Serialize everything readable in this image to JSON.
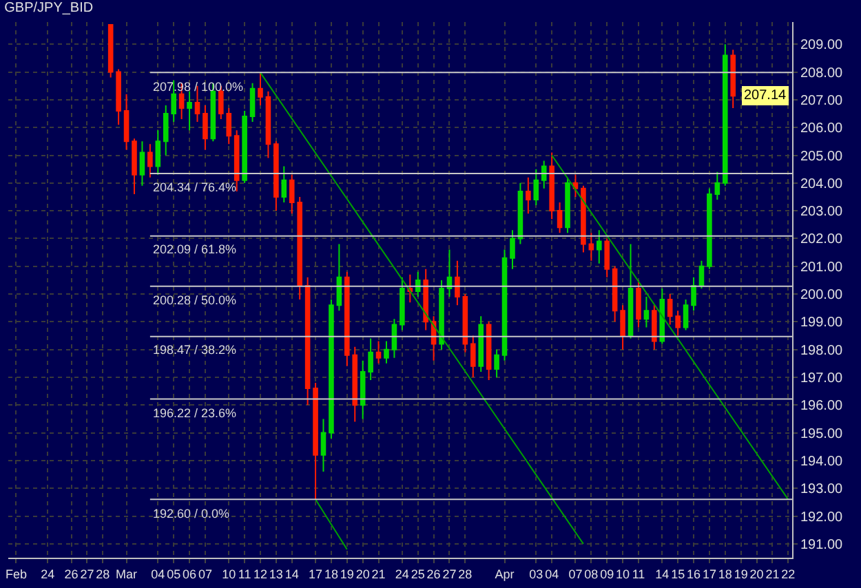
{
  "chart_data": {
    "type": "candlestick",
    "title": "GBP/JPY_BID",
    "categories": [
      "Feb",
      null,
      null,
      null,
      "24",
      null,
      null,
      "26",
      null,
      "27",
      null,
      "28",
      null,
      null,
      "Mar",
      null,
      null,
      null,
      "04",
      null,
      "05",
      null,
      "06",
      null,
      "07",
      null,
      null,
      "10",
      null,
      "11",
      null,
      "12",
      null,
      "13",
      null,
      "14",
      null,
      null,
      "17",
      null,
      "18",
      null,
      "19",
      null,
      "20",
      null,
      "21",
      null,
      null,
      "24",
      null,
      "25",
      null,
      "26",
      null,
      "27",
      null,
      "28",
      null,
      null,
      null,
      null,
      "Apr",
      null,
      null,
      null,
      "03",
      null,
      "04",
      null,
      null,
      "07",
      null,
      "08",
      null,
      "09",
      null,
      "10",
      null,
      "11",
      null,
      null,
      "14",
      null,
      "15",
      null,
      "16",
      null,
      "17",
      null,
      "18",
      null,
      "19",
      null,
      "20",
      null,
      "21",
      null,
      "22"
    ],
    "ohlc": [
      null,
      null,
      null,
      null,
      null,
      null,
      null,
      null,
      null,
      null,
      null,
      null,
      [
        209.7,
        209.7,
        207.8,
        208.0
      ],
      [
        208.0,
        208.1,
        206.1,
        206.6
      ],
      [
        206.6,
        207.2,
        205.2,
        205.5
      ],
      [
        205.5,
        205.6,
        203.6,
        204.3
      ],
      [
        204.3,
        205.5,
        203.9,
        205.1
      ],
      [
        205.1,
        205.4,
        204.2,
        204.6
      ],
      [
        204.6,
        205.9,
        204.3,
        205.5
      ],
      [
        205.5,
        206.8,
        205.0,
        206.5
      ],
      [
        206.5,
        207.7,
        206.2,
        207.2
      ],
      [
        207.2,
        207.6,
        206.3,
        206.7
      ],
      [
        206.7,
        207.3,
        205.9,
        206.9
      ],
      [
        206.9,
        207.5,
        206.2,
        206.5
      ],
      [
        206.5,
        206.8,
        205.2,
        205.6
      ],
      [
        205.6,
        207.6,
        205.5,
        207.3
      ],
      [
        207.3,
        207.5,
        206.3,
        206.5
      ],
      [
        206.5,
        206.7,
        205.4,
        205.7
      ],
      [
        205.7,
        205.9,
        203.7,
        204.1
      ],
      [
        204.1,
        206.6,
        204.0,
        206.4
      ],
      [
        206.4,
        207.6,
        206.2,
        207.4
      ],
      [
        207.4,
        207.98,
        206.8,
        207.1
      ],
      [
        207.1,
        207.3,
        204.9,
        205.4
      ],
      [
        205.4,
        205.5,
        203.0,
        203.5
      ],
      [
        203.5,
        204.6,
        203.3,
        204.1
      ],
      [
        204.1,
        204.3,
        202.9,
        203.3
      ],
      [
        203.3,
        203.5,
        199.8,
        200.3
      ],
      [
        200.3,
        200.6,
        196.0,
        196.6
      ],
      [
        196.6,
        196.8,
        192.6,
        194.2
      ],
      [
        194.2,
        195.5,
        193.6,
        195.0
      ],
      [
        195.0,
        199.8,
        194.8,
        199.6
      ],
      [
        199.6,
        201.8,
        199.4,
        200.6
      ],
      [
        200.6,
        200.8,
        197.4,
        197.8
      ],
      [
        197.8,
        198.1,
        195.4,
        196.0
      ],
      [
        196.0,
        197.6,
        195.5,
        197.2
      ],
      [
        197.2,
        198.4,
        196.9,
        197.9
      ],
      [
        197.9,
        198.3,
        197.5,
        197.7
      ],
      [
        197.7,
        198.3,
        197.5,
        198.0
      ],
      [
        198.0,
        199.1,
        197.7,
        198.9
      ],
      [
        198.9,
        200.6,
        198.7,
        200.2
      ],
      [
        200.2,
        200.7,
        199.7,
        200.1
      ],
      [
        200.1,
        200.8,
        199.9,
        200.5
      ],
      [
        200.5,
        200.9,
        198.7,
        199.0
      ],
      [
        199.0,
        199.2,
        197.6,
        198.2
      ],
      [
        198.2,
        200.5,
        198.0,
        200.2
      ],
      [
        200.2,
        201.6,
        199.9,
        200.6
      ],
      [
        200.6,
        201.2,
        199.6,
        199.9
      ],
      [
        199.9,
        200.0,
        197.9,
        198.2
      ],
      [
        198.2,
        198.5,
        197.0,
        197.4
      ],
      [
        197.4,
        199.2,
        197.2,
        198.9
      ],
      [
        198.9,
        199.0,
        196.9,
        197.3
      ],
      [
        197.3,
        198.0,
        197.0,
        197.8
      ],
      [
        197.8,
        201.6,
        197.6,
        201.3
      ],
      [
        201.3,
        202.3,
        200.9,
        202.0
      ],
      [
        202.0,
        204.0,
        201.8,
        203.7
      ],
      [
        203.7,
        204.2,
        202.9,
        203.4
      ],
      [
        203.4,
        204.5,
        203.2,
        204.1
      ],
      [
        204.1,
        204.8,
        203.8,
        204.6
      ],
      [
        204.6,
        205.1,
        202.7,
        203.0
      ],
      [
        203.0,
        203.3,
        202.2,
        202.4
      ],
      [
        202.4,
        204.2,
        202.2,
        204.0
      ],
      [
        204.0,
        204.3,
        203.5,
        203.8
      ],
      [
        203.8,
        203.9,
        201.5,
        201.8
      ],
      [
        201.8,
        202.2,
        201.2,
        201.6
      ],
      [
        201.6,
        202.3,
        201.1,
        201.9
      ],
      [
        201.9,
        202.0,
        200.6,
        200.9
      ],
      [
        200.9,
        201.0,
        199.0,
        199.4
      ],
      [
        199.4,
        199.6,
        198.0,
        198.5
      ],
      [
        198.5,
        201.8,
        198.4,
        200.2
      ],
      [
        200.2,
        200.5,
        198.8,
        199.1
      ],
      [
        199.1,
        199.9,
        198.8,
        199.4
      ],
      [
        199.4,
        199.6,
        198.0,
        198.3
      ],
      [
        198.3,
        200.2,
        198.2,
        199.8
      ],
      [
        199.8,
        200.0,
        198.9,
        199.2
      ],
      [
        199.2,
        199.4,
        198.5,
        198.8
      ],
      [
        198.8,
        199.8,
        198.7,
        199.6
      ],
      [
        199.6,
        200.6,
        199.4,
        200.3
      ],
      [
        200.3,
        201.2,
        200.2,
        201.0
      ],
      [
        201.0,
        203.8,
        200.9,
        203.6
      ],
      [
        203.6,
        204.4,
        203.4,
        204.0
      ],
      [
        204.0,
        209.0,
        203.9,
        208.6
      ],
      [
        208.6,
        208.8,
        206.7,
        207.14
      ],
      null,
      null,
      null,
      null,
      null,
      null,
      null
    ],
    "colors": [
      null,
      null,
      null,
      null,
      null,
      null,
      null,
      null,
      null,
      null,
      null,
      null,
      "#ff1c00",
      "#ff1c00",
      "#ff1c00",
      "#ff1c00",
      "#00d800",
      "#ff1c00",
      "#00d800",
      "#00d800",
      "#00d800",
      "#ff1c00",
      "#00d800",
      "#ff1c00",
      "#ff1c00",
      "#00d800",
      "#ff1c00",
      "#ff1c00",
      "#ff1c00",
      "#00d800",
      "#00d800",
      "#ff1c00",
      "#ff1c00",
      "#ff1c00",
      "#00d800",
      "#ff1c00",
      "#ff1c00",
      "#ff1c00",
      "#ff1c00",
      "#00d800",
      "#00d800",
      "#00d800",
      "#ff1c00",
      "#ff1c00",
      "#00d800",
      "#00d800",
      "#ff1c00",
      "#00d800",
      "#00d800",
      "#00d800",
      "#ff1c00",
      "#00d800",
      "#ff1c00",
      "#ff1c00",
      "#00d800",
      "#00d800",
      "#ff1c00",
      "#ff1c00",
      "#ff1c00",
      "#00d800",
      "#ff1c00",
      "#00d800",
      "#00d800",
      "#00d800",
      "#00d800",
      "#ff1c00",
      "#00d800",
      "#00d800",
      "#ff1c00",
      "#ff1c00",
      "#00d800",
      "#ff1c00",
      "#ff1c00",
      "#ff1c00",
      "#00d800",
      "#ff1c00",
      "#ff1c00",
      "#ff1c00",
      "#00d800",
      "#ff1c00",
      "#00d800",
      "#ff1c00",
      "#00d800",
      "#ff1c00",
      "#ff1c00",
      "#00d800",
      "#00d800",
      "#00d800",
      "#00d800",
      "#00d800",
      "#00d800",
      "#ff1c00",
      null,
      null,
      null,
      null,
      null,
      null,
      null
    ],
    "series": [
      {
        "type": "line",
        "color": "#00a000",
        "values": [
          null,
          null,
          null,
          null,
          null,
          null,
          null,
          null,
          null,
          null,
          null,
          null,
          null,
          null,
          null,
          null,
          null,
          null,
          null,
          null,
          null,
          null,
          null,
          null,
          null,
          null,
          null,
          null,
          null,
          null,
          null,
          207.98,
          null,
          null,
          null,
          null,
          null,
          null,
          null,
          null,
          null,
          null,
          null,
          null,
          null,
          null,
          null,
          null,
          null,
          null,
          null,
          null,
          null,
          null,
          null,
          null,
          null,
          null,
          null,
          null,
          null,
          null,
          null,
          null,
          null,
          null,
          null,
          null,
          null,
          null,
          null,
          null,
          191.0,
          null,
          null,
          null,
          null,
          null,
          null,
          null,
          null,
          null,
          null,
          null,
          null,
          null,
          null,
          null,
          null,
          null,
          null,
          null,
          null,
          null,
          null,
          null,
          null,
          null,
          null
        ]
      },
      {
        "type": "line",
        "color": "#00a000",
        "values": [
          null,
          null,
          null,
          null,
          null,
          null,
          null,
          null,
          null,
          null,
          null,
          null,
          null,
          null,
          null,
          null,
          null,
          null,
          null,
          null,
          null,
          null,
          null,
          null,
          null,
          null,
          null,
          null,
          null,
          null,
          null,
          null,
          null,
          null,
          null,
          null,
          null,
          null,
          192.6,
          null,
          null,
          null,
          190.8,
          null,
          null,
          null,
          null,
          null,
          null,
          null,
          null,
          null,
          null,
          null,
          null,
          null,
          null,
          null,
          null,
          null,
          null,
          null,
          null,
          null,
          null,
          null,
          null,
          null,
          null,
          null,
          null,
          null,
          null,
          null,
          null,
          null,
          null,
          null,
          null,
          null,
          null,
          null,
          null,
          null,
          null,
          null,
          null,
          null,
          null,
          null,
          null,
          null,
          null,
          null,
          null,
          null,
          null,
          null,
          null
        ]
      },
      {
        "type": "line",
        "color": "#00a000",
        "values": [
          null,
          null,
          null,
          null,
          null,
          null,
          null,
          null,
          null,
          null,
          null,
          null,
          null,
          null,
          null,
          null,
          null,
          null,
          null,
          null,
          null,
          null,
          null,
          null,
          null,
          null,
          null,
          null,
          null,
          null,
          null,
          null,
          null,
          null,
          null,
          null,
          null,
          null,
          null,
          null,
          null,
          null,
          null,
          null,
          null,
          null,
          null,
          null,
          null,
          null,
          null,
          null,
          null,
          null,
          null,
          null,
          null,
          null,
          null,
          null,
          null,
          null,
          null,
          null,
          null,
          null,
          null,
          null,
          205.0,
          null,
          null,
          null,
          null,
          null,
          null,
          null,
          null,
          null,
          null,
          null,
          null,
          null,
          null,
          null,
          null,
          null,
          null,
          null,
          null,
          null,
          null,
          null,
          null,
          null,
          null,
          null,
          null,
          null,
          192.6
        ]
      }
    ],
    "ref_lines": [
      {
        "axis": "y",
        "value": 207.98,
        "label": "207.98 / 100.0%",
        "color": "#c8c8c8"
      },
      {
        "axis": "y",
        "value": 204.34,
        "label": "204.34 / 76.4%",
        "color": "#c8c8c8"
      },
      {
        "axis": "y",
        "value": 202.09,
        "label": "202.09 / 61.8%",
        "color": "#c8c8c8"
      },
      {
        "axis": "y",
        "value": 200.28,
        "label": "200.28 / 50.0%",
        "color": "#c8c8c8"
      },
      {
        "axis": "y",
        "value": 198.47,
        "label": "198.47 / 38.2%",
        "color": "#c8c8c8"
      },
      {
        "axis": "y",
        "value": 196.22,
        "label": "196.22 / 23.6%",
        "color": "#c8c8c8"
      },
      {
        "axis": "y",
        "value": 192.6,
        "label": "192.60 / 0.0%",
        "color": "#c8c8c8"
      }
    ],
    "annotations": [
      {
        "text": "207.14",
        "y": 207.14
      }
    ],
    "ylim": [
      190.5,
      209.8
    ],
    "yticks": [
      {
        "value": 191,
        "label": "191.00"
      },
      {
        "value": 192,
        "label": "192.00"
      },
      {
        "value": 193,
        "label": "193.00"
      },
      {
        "value": 194,
        "label": "194.00"
      },
      {
        "value": 195,
        "label": "195.00"
      },
      {
        "value": 196,
        "label": "196.00"
      },
      {
        "value": 197,
        "label": "197.00"
      },
      {
        "value": 198,
        "label": "198.00"
      },
      {
        "value": 199,
        "label": "199.00"
      },
      {
        "value": 200,
        "label": "200.00"
      },
      {
        "value": 201,
        "label": "201.00"
      },
      {
        "value": 202,
        "label": "202.00"
      },
      {
        "value": 203,
        "label": "203.00"
      },
      {
        "value": 204,
        "label": "204.00"
      },
      {
        "value": 205,
        "label": "205.00"
      },
      {
        "value": 206,
        "label": "206.00"
      },
      {
        "value": 207,
        "label": "207.00"
      },
      {
        "value": 208,
        "label": "208.00"
      },
      {
        "value": 209,
        "label": "209.00"
      }
    ],
    "grid": true
  }
}
